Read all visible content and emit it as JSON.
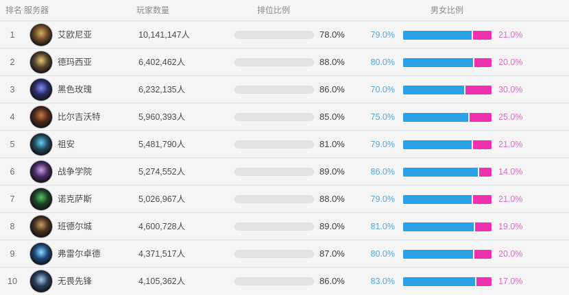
{
  "table": {
    "headers": {
      "rank": "排名",
      "server": "服务器",
      "players": "玩家数量",
      "ranked": "排位比例",
      "gender": "男女比例"
    },
    "rows": [
      {
        "rank": "1",
        "server": "艾欧尼亚",
        "players": "10,141,147人",
        "ranked_pct": 78,
        "ranked_label": "78.0%",
        "male_pct": 79,
        "male_label": "79.0%",
        "female_pct": 21,
        "female_label": "21.0%",
        "icon": "ionia-crest-icon",
        "icon_core": "#d9ae66",
        "icon_mid": "#6b4826"
      },
      {
        "rank": "2",
        "server": "德玛西亚",
        "players": "6,402,462人",
        "ranked_pct": 88,
        "ranked_label": "88.0%",
        "male_pct": 80,
        "male_label": "80.0%",
        "female_pct": 20,
        "female_label": "20.0%",
        "icon": "demacia-crest-icon",
        "icon_core": "#e8c878",
        "icon_mid": "#56452c"
      },
      {
        "rank": "3",
        "server": "黑色玫瑰",
        "players": "6,232,135人",
        "ranked_pct": 86,
        "ranked_label": "86.0%",
        "male_pct": 70,
        "male_label": "70.0%",
        "female_pct": 30,
        "female_label": "30.0%",
        "icon": "black-rose-crest-icon",
        "icon_core": "#7e8ef5",
        "icon_mid": "#2c2a64"
      },
      {
        "rank": "4",
        "server": "比尔吉沃特",
        "players": "5,960,393人",
        "ranked_pct": 85,
        "ranked_label": "85.0%",
        "male_pct": 75,
        "male_label": "75.0%",
        "female_pct": 25,
        "female_label": "25.0%",
        "icon": "bilgewater-crest-icon",
        "icon_core": "#c67a48",
        "icon_mid": "#522a1c"
      },
      {
        "rank": "5",
        "server": "祖安",
        "players": "5,481,790人",
        "ranked_pct": 81,
        "ranked_label": "81.0%",
        "male_pct": 79,
        "male_label": "79.0%",
        "female_pct": 21,
        "female_label": "21.0%",
        "icon": "zaun-crest-icon",
        "icon_core": "#63d4f5",
        "icon_mid": "#22485c"
      },
      {
        "rank": "6",
        "server": "战争学院",
        "players": "5,274,552人",
        "ranked_pct": 89,
        "ranked_label": "89.0%",
        "male_pct": 86,
        "male_label": "86.0%",
        "female_pct": 14,
        "female_label": "14.0%",
        "icon": "war-academy-crest-icon",
        "icon_core": "#c8a6e6",
        "icon_mid": "#472a62"
      },
      {
        "rank": "7",
        "server": "诺克萨斯",
        "players": "5,026,967人",
        "ranked_pct": 88,
        "ranked_label": "88.0%",
        "male_pct": 79,
        "male_label": "79.0%",
        "female_pct": 21,
        "female_label": "21.0%",
        "icon": "noxus-crest-icon",
        "icon_core": "#55c465",
        "icon_mid": "#1e4226"
      },
      {
        "rank": "8",
        "server": "班德尔城",
        "players": "4,600,728人",
        "ranked_pct": 89,
        "ranked_label": "89.0%",
        "male_pct": 81,
        "male_label": "81.0%",
        "female_pct": 19,
        "female_label": "19.0%",
        "icon": "bandle-city-crest-icon",
        "icon_core": "#c6a062",
        "icon_mid": "#483320"
      },
      {
        "rank": "9",
        "server": "弗雷尔卓德",
        "players": "4,371,517人",
        "ranked_pct": 87,
        "ranked_label": "87.0%",
        "male_pct": 80,
        "male_label": "80.0%",
        "female_pct": 20,
        "female_label": "20.0%",
        "icon": "freljord-crest-icon",
        "icon_core": "#8addff",
        "icon_mid": "#1e4878"
      },
      {
        "rank": "10",
        "server": "无畏先锋",
        "players": "4,105,362人",
        "ranked_pct": 86,
        "ranked_label": "86.0%",
        "male_pct": 83,
        "male_label": "83.0%",
        "female_pct": 17,
        "female_label": "17.0%",
        "icon": "vanguard-crest-icon",
        "icon_core": "#a6ccee",
        "icon_mid": "#2a3c5a"
      }
    ]
  },
  "colors": {
    "background": "#f5f5f6",
    "ranked_bar": "#f8a531",
    "ranked_track": "#e3e3e4",
    "male_bar": "#29a2e9",
    "female_bar": "#ef30b0",
    "male_label": "#56a7dc",
    "female_label": "#d76fc5"
  }
}
